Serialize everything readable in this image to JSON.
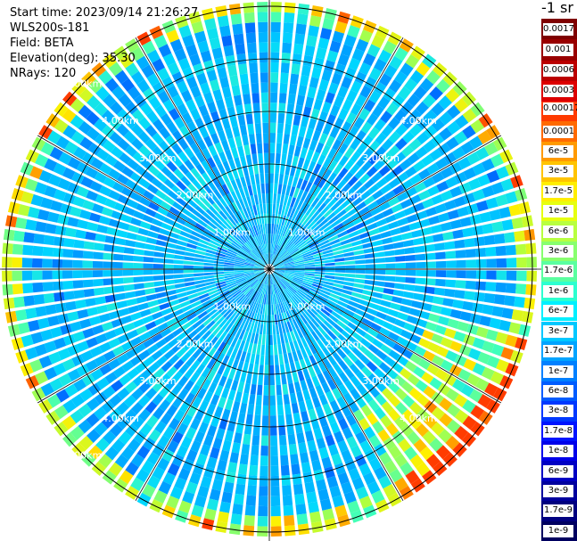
{
  "info": {
    "start_time": "Start time: 2023/09/14 21:26:27",
    "device": "WLS200s-181",
    "field": "Field: BETA",
    "elevation": "Elevation(deg): 35.30",
    "nrays": "NRays: 120"
  },
  "plot": {
    "ring_labels": [
      "1.00km",
      "2.00km",
      "3.00km",
      "4.00km",
      "5.00km"
    ],
    "num_rays": 120
  },
  "legend": {
    "unit_label": "-1 sr",
    "top_labels": [
      "0.0017",
      "0.001",
      "0.0006",
      "0.0003"
    ],
    "top_colors": [
      "#7f0000",
      "#990000",
      "#bb0000",
      "#dd0000"
    ],
    "labels": [
      "0.00017",
      "0.0001",
      "6e-5",
      "3e-5",
      "1.7e-5",
      "1e-5",
      "6e-6",
      "3e-6",
      "1.7e-6",
      "1e-6",
      "6e-7",
      "3e-7",
      "1.7e-7",
      "1e-7",
      "6e-8",
      "3e-8",
      "1.7e-8",
      "1e-8",
      "6e-9",
      "3e-9",
      "1.7e-9",
      "1e-9"
    ],
    "colors": [
      "#ff3a00",
      "#ff6a00",
      "#ff9a00",
      "#ffc400",
      "#ffee00",
      "#e6ff10",
      "#b8ff40",
      "#88ff6e",
      "#5affa0",
      "#2cffd0",
      "#00f0ff",
      "#00c8ff",
      "#00a4ff",
      "#0080ff",
      "#005cff",
      "#0038ff",
      "#0014ff",
      "#0000ea",
      "#0000c4",
      "#00009e",
      "#000080",
      "#000060"
    ]
  }
}
